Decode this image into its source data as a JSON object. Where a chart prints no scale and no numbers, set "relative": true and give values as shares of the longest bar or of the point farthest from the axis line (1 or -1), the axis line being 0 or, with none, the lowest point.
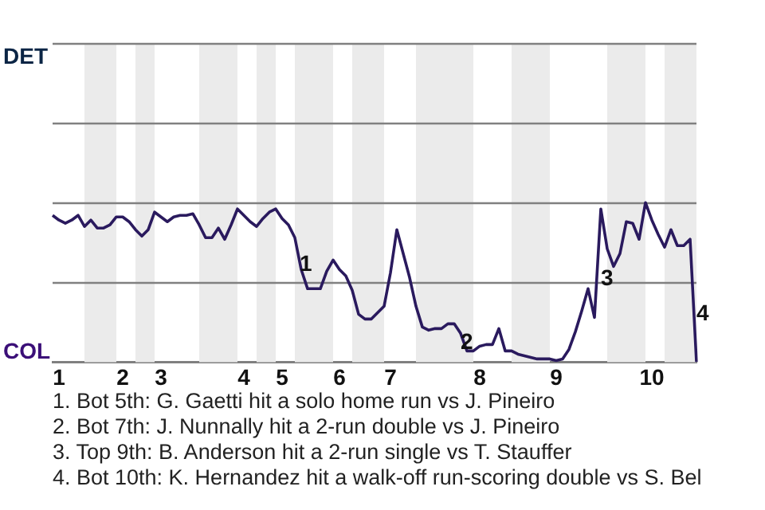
{
  "chart_data": {
    "type": "line",
    "relative": true,
    "categories": [
      null,
      "1",
      null,
      null,
      null,
      null,
      null,
      null,
      null,
      null,
      null,
      "2",
      null,
      null,
      null,
      null,
      null,
      "3",
      null,
      null,
      null,
      null,
      null,
      null,
      null,
      null,
      null,
      null,
      null,
      null,
      "4",
      null,
      null,
      null,
      null,
      null,
      "5",
      null,
      null,
      null,
      null,
      null,
      null,
      null,
      null,
      "6",
      null,
      null,
      null,
      null,
      null,
      null,
      null,
      "7",
      null,
      null,
      null,
      null,
      null,
      null,
      null,
      null,
      null,
      null,
      null,
      null,
      null,
      "8",
      null,
      null,
      null,
      null,
      null,
      null,
      null,
      null,
      null,
      null,
      null,
      "9",
      null,
      null,
      null,
      null,
      null,
      null,
      null,
      null,
      null,
      null,
      null,
      null,
      null,
      null,
      "10",
      null,
      null,
      null,
      null,
      null,
      null,
      null
    ],
    "series": [
      {
        "color": "#2a1a5e",
        "values": [
          0.92,
          0.89,
          0.87,
          0.89,
          0.92,
          0.85,
          0.89,
          0.84,
          0.84,
          0.86,
          0.91,
          0.91,
          0.88,
          0.83,
          0.79,
          0.83,
          0.94,
          0.91,
          0.88,
          0.91,
          0.92,
          0.92,
          0.93,
          0.86,
          0.78,
          0.78,
          0.84,
          0.77,
          0.86,
          0.96,
          0.92,
          0.88,
          0.85,
          0.9,
          0.94,
          0.96,
          0.9,
          0.86,
          0.78,
          0.58,
          0.46,
          0.46,
          0.46,
          0.57,
          0.64,
          0.58,
          0.54,
          0.45,
          0.3,
          0.27,
          0.27,
          0.31,
          0.35,
          0.56,
          0.83,
          0.68,
          0.53,
          0.35,
          0.22,
          0.2,
          0.21,
          0.21,
          0.24,
          0.24,
          0.18,
          0.07,
          0.07,
          0.1,
          0.11,
          0.11,
          0.21,
          0.07,
          0.07,
          0.05,
          0.04,
          0.03,
          0.02,
          0.02,
          0.02,
          0.01,
          0.02,
          0.08,
          0.19,
          0.32,
          0.46,
          0.28,
          0.96,
          0.71,
          0.6,
          0.68,
          0.88,
          0.87,
          0.77,
          1,
          0.89,
          0.8,
          0.72,
          0.83,
          0.73,
          0.73,
          0.77,
          0
        ]
      }
    ],
    "ref_lines": [
      {
        "axis": "y",
        "value": 0.5,
        "color": "#808080"
      },
      {
        "axis": "y",
        "value": 1,
        "color": "#808080"
      },
      {
        "axis": "y",
        "value": 1.5,
        "color": "#808080"
      },
      {
        "axis": "y",
        "value": 2,
        "color": "#808080"
      }
    ],
    "annotations": [
      "DET",
      "COL",
      "1",
      "2",
      "3",
      "4",
      "1. Bot 5th: G. Gaetti hit a solo home run vs J. Pineiro",
      "2. Bot 7th: J. Nunnally hit a 2-run double vs J. Pineiro",
      "3. Top 9th: B. Anderson hit a 2-run single vs T. Stauffer",
      "4. Bot 10th: K. Hernandez hit a walk-off run-scoring double vs S. Bel"
    ]
  }
}
